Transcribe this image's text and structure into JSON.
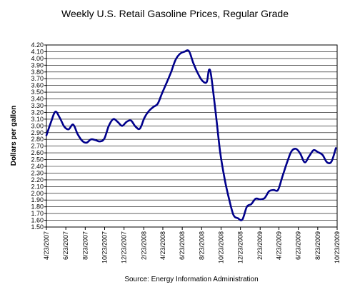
{
  "chart_data": {
    "type": "line",
    "title": "Weekly U.S. Retail Gasoline Prices, Regular Grade",
    "ylabel": "Dollars per gallon",
    "source": "Source:  Energy Information Administration",
    "ylim": [
      1.5,
      4.2
    ],
    "ytick_step": 0.1,
    "yticks": [
      "1.50",
      "1.60",
      "1.70",
      "1.80",
      "1.90",
      "2.00",
      "2.10",
      "2.20",
      "2.30",
      "2.40",
      "2.50",
      "2.60",
      "2.70",
      "2.80",
      "2.90",
      "3.00",
      "3.10",
      "3.20",
      "3.30",
      "3.40",
      "3.50",
      "3.60",
      "3.70",
      "3.80",
      "3.90",
      "4.00",
      "4.10",
      "4.20"
    ],
    "xticks": [
      "4/23/2007",
      "6/23/2007",
      "8/23/2007",
      "10/23/2007",
      "12/23/2007",
      "2/23/2008",
      "4/23/2008",
      "6/23/2008",
      "8/23/2008",
      "10/23/2008",
      "12/23/2008",
      "2/23/2009",
      "4/23/2009",
      "6/23/2009",
      "8/23/2009",
      "10/23/2009"
    ],
    "grid": true,
    "line_color": "#00008b",
    "series": [
      {
        "x": [
          "2007-04-23",
          "2007-05-07",
          "2007-05-21",
          "2007-06-04",
          "2007-06-18",
          "2007-07-02",
          "2007-07-16",
          "2007-07-30",
          "2007-08-13",
          "2007-08-27",
          "2007-09-10",
          "2007-09-24",
          "2007-10-08",
          "2007-10-22",
          "2007-11-05",
          "2007-11-19",
          "2007-12-03",
          "2007-12-17",
          "2007-12-31",
          "2008-01-14",
          "2008-01-28",
          "2008-02-11",
          "2008-02-25",
          "2008-03-10",
          "2008-03-24",
          "2008-04-07",
          "2008-04-21",
          "2008-05-05",
          "2008-05-19",
          "2008-06-02",
          "2008-06-16",
          "2008-06-30",
          "2008-07-14",
          "2008-07-28",
          "2008-08-11",
          "2008-08-25",
          "2008-09-08",
          "2008-09-15",
          "2008-09-22",
          "2008-10-06",
          "2008-10-20",
          "2008-11-03",
          "2008-11-17",
          "2008-12-01",
          "2008-12-15",
          "2008-12-29",
          "2009-01-12",
          "2009-01-26",
          "2009-02-09",
          "2009-02-23",
          "2009-03-09",
          "2009-03-23",
          "2009-04-06",
          "2009-04-20",
          "2009-05-04",
          "2009-05-18",
          "2009-06-01",
          "2009-06-15",
          "2009-06-29",
          "2009-07-13",
          "2009-07-27",
          "2009-08-10",
          "2009-08-24",
          "2009-09-07",
          "2009-09-21",
          "2009-10-05",
          "2009-10-19"
        ],
        "values": [
          2.86,
          3.05,
          3.21,
          3.12,
          2.99,
          2.95,
          3.02,
          2.88,
          2.78,
          2.75,
          2.8,
          2.79,
          2.77,
          2.81,
          3.0,
          3.1,
          3.06,
          3.0,
          3.06,
          3.08,
          2.99,
          2.96,
          3.12,
          3.22,
          3.28,
          3.33,
          3.49,
          3.64,
          3.8,
          3.98,
          4.07,
          4.1,
          4.11,
          3.93,
          3.78,
          3.67,
          3.65,
          3.83,
          3.74,
          3.2,
          2.62,
          2.22,
          1.92,
          1.68,
          1.63,
          1.61,
          1.8,
          1.84,
          1.92,
          1.91,
          1.93,
          2.03,
          2.05,
          2.05,
          2.25,
          2.45,
          2.62,
          2.66,
          2.59,
          2.46,
          2.55,
          2.64,
          2.61,
          2.57,
          2.46,
          2.47,
          2.67
        ]
      }
    ]
  }
}
